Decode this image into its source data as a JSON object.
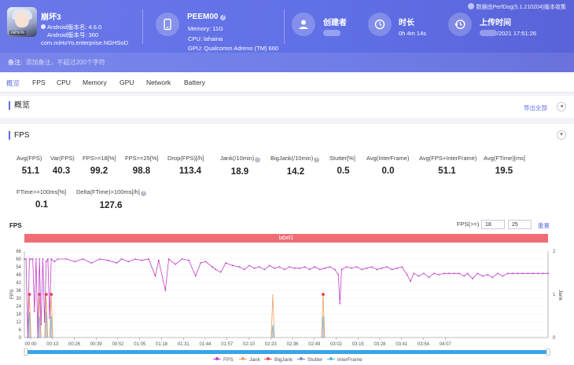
{
  "app": {
    "name": "崩坏3",
    "version": "Android版本名: 4.6.0",
    "code": "Android版本号: 360",
    "package": "com.miHoYo.enterprise.NGHSoD",
    "icon_tag": "miHoYo"
  },
  "device": {
    "name": "PEEM00",
    "memory": "Memory: 11G",
    "cpu": "CPU: lahaina",
    "gpu": "GPU: Qualcomm Adreno (TM) 660"
  },
  "creator": {
    "title": "创建者"
  },
  "duration": {
    "title": "时长",
    "value": "0h 4m 14s"
  },
  "upload": {
    "title": "上传时间",
    "value": "/2021 17:51:26"
  },
  "perfdog": "数据由PerfDog(5.1.210204)版本收集",
  "note": {
    "label": "备注:",
    "placeholder": "添加备注，不超过200个字符"
  },
  "tabs": [
    "概览",
    "FPS",
    "CPU",
    "Memory",
    "GPU",
    "Network",
    "Battery"
  ],
  "overview": {
    "title": "概览",
    "export": "导出全部"
  },
  "fps_section": {
    "title": "FPS"
  },
  "metrics": [
    {
      "label": "Avg(FPS)",
      "value": "51.1"
    },
    {
      "label": "Var(FPS)",
      "value": "40.3"
    },
    {
      "label": "FPS>=18[%]",
      "value": "99.2"
    },
    {
      "label": "FPS>=25[%]",
      "value": "98.8"
    },
    {
      "label": "Drop(FPS)[/h]",
      "value": "113.4"
    },
    {
      "label": "Jank(/10min)",
      "value": "18.9"
    },
    {
      "label": "BigJank(/10min)",
      "value": "14.2"
    },
    {
      "label": "Stutter[%]",
      "value": "0.5"
    },
    {
      "label": "Avg(InterFrame)",
      "value": "0.0"
    },
    {
      "label": "Avg(FPS+InterFrame)",
      "value": "51.1"
    },
    {
      "label": "Avg(FTime)[ms]",
      "value": "19.5"
    },
    {
      "label": "FTime>=100ms[%]",
      "value": "0.1"
    },
    {
      "label": "Delta(FTime)>100ms[/h]",
      "value": "127.6"
    }
  ],
  "chart_controls": {
    "title": "FPS",
    "filter_label": "FPS(>=)",
    "filter_1": "18",
    "filter_2": "25",
    "reset": "重置",
    "label_bar": "label1"
  },
  "colors": {
    "header": "#5f6fe6",
    "fps": "#c03fc8",
    "jank": "#f0a060",
    "bigjank": "#e84a4a",
    "stutter": "#7b8fb8",
    "interframe": "#4fb8e8",
    "label_bar": "#ef6d74",
    "scrollbar": "#3aa4e8"
  },
  "chart_data": {
    "type": "line",
    "title": "",
    "ylabel": "FPS",
    "y2label": "Jank",
    "ylim": [
      0,
      66
    ],
    "y2lim": [
      0,
      2
    ],
    "y_ticks": [
      "0",
      "6",
      "12",
      "18",
      "24",
      "30",
      "36",
      "42",
      "48",
      "54",
      "60",
      "66"
    ],
    "y2_ticks": [
      "0",
      "1",
      "2"
    ],
    "x_ticks": [
      "00:00",
      "00:13",
      "00:26",
      "00:39",
      "00:52",
      "01:05",
      "01:18",
      "01:31",
      "01:44",
      "01:57",
      "02:10",
      "02:23",
      "02:36",
      "02:49",
      "03:02",
      "03:15",
      "03:28",
      "03:41",
      "03:54",
      "04:07"
    ],
    "legend": [
      "FPS",
      "Jank",
      "BigJank",
      "Stutter",
      "InterFrame"
    ],
    "fps_series": [
      [
        0,
        60
      ],
      [
        1,
        60
      ],
      [
        2,
        0
      ],
      [
        3,
        60
      ],
      [
        4,
        60
      ],
      [
        5,
        60
      ],
      [
        6,
        20
      ],
      [
        7,
        60
      ],
      [
        8,
        0
      ],
      [
        9,
        60
      ],
      [
        10,
        10
      ],
      [
        11,
        60
      ],
      [
        12,
        12
      ],
      [
        13,
        58
      ],
      [
        14,
        60
      ],
      [
        15,
        15
      ],
      [
        16,
        60
      ],
      [
        18,
        58
      ],
      [
        20,
        60
      ],
      [
        25,
        60
      ],
      [
        30,
        58
      ],
      [
        35,
        60
      ],
      [
        40,
        57
      ],
      [
        45,
        60
      ],
      [
        50,
        59
      ],
      [
        55,
        57
      ],
      [
        58,
        60
      ],
      [
        62,
        58
      ],
      [
        66,
        60
      ],
      [
        70,
        59
      ],
      [
        74,
        60
      ],
      [
        78,
        47
      ],
      [
        80,
        59
      ],
      [
        84,
        36
      ],
      [
        86,
        60
      ],
      [
        90,
        56
      ],
      [
        94,
        60
      ],
      [
        98,
        59
      ],
      [
        102,
        47
      ],
      [
        105,
        57
      ],
      [
        108,
        58
      ],
      [
        112,
        54
      ],
      [
        114,
        52
      ],
      [
        117,
        50
      ],
      [
        120,
        57
      ],
      [
        124,
        55
      ],
      [
        128,
        54
      ],
      [
        131,
        52
      ],
      [
        134,
        55
      ],
      [
        137,
        53
      ],
      [
        140,
        54
      ],
      [
        143,
        52
      ],
      [
        146,
        55
      ],
      [
        149,
        53
      ],
      [
        152,
        54
      ],
      [
        155,
        52
      ],
      [
        158,
        54
      ],
      [
        161,
        53
      ],
      [
        164,
        53
      ],
      [
        167,
        54
      ],
      [
        170,
        52
      ],
      [
        173,
        54
      ],
      [
        176,
        52
      ],
      [
        179,
        53
      ],
      [
        182,
        54
      ],
      [
        185,
        52
      ],
      [
        187,
        48
      ],
      [
        188,
        26
      ],
      [
        189,
        52
      ],
      [
        192,
        54
      ],
      [
        195,
        53
      ],
      [
        198,
        54
      ],
      [
        201,
        52
      ],
      [
        204,
        53
      ],
      [
        207,
        54
      ],
      [
        210,
        52
      ],
      [
        213,
        53
      ],
      [
        216,
        54
      ],
      [
        219,
        52
      ],
      [
        222,
        53
      ],
      [
        225,
        54
      ],
      [
        228,
        48
      ],
      [
        230,
        43
      ],
      [
        232,
        49
      ],
      [
        235,
        47
      ],
      [
        238,
        49
      ],
      [
        241,
        46
      ],
      [
        244,
        49
      ],
      [
        247,
        48
      ],
      [
        250,
        49
      ],
      [
        253,
        49
      ],
      [
        256,
        49
      ],
      [
        259,
        49
      ],
      [
        262,
        47
      ],
      [
        264,
        49
      ],
      [
        267,
        45
      ],
      [
        270,
        49
      ],
      [
        273,
        47
      ],
      [
        276,
        48
      ],
      [
        279,
        46
      ],
      [
        282,
        49
      ],
      [
        285,
        47
      ],
      [
        288,
        49
      ],
      [
        291,
        49
      ],
      [
        294,
        49
      ],
      [
        297,
        49
      ],
      [
        300,
        49
      ],
      [
        303,
        49
      ],
      [
        306,
        49
      ],
      [
        309,
        49
      ],
      [
        312,
        49
      ]
    ],
    "jank_spikes": [
      [
        3,
        1
      ],
      [
        9,
        1
      ],
      [
        13,
        1
      ],
      [
        16,
        1
      ],
      [
        148,
        1
      ],
      [
        178,
        1
      ]
    ],
    "bigjank_spikes": [
      [
        3,
        1
      ],
      [
        9,
        1
      ],
      [
        13,
        1
      ],
      [
        16,
        1
      ],
      [
        178,
        1
      ]
    ],
    "stutter_spikes": [
      [
        3,
        0.6
      ],
      [
        9,
        0.5
      ],
      [
        13,
        0.6
      ],
      [
        16,
        0.5
      ],
      [
        148,
        0.3
      ],
      [
        178,
        0.5
      ]
    ]
  }
}
